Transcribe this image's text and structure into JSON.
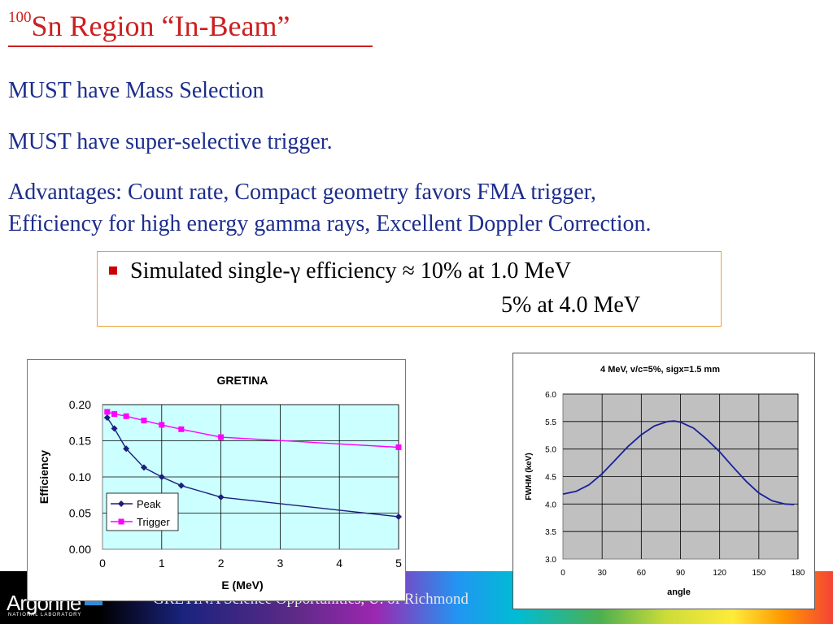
{
  "slide": {
    "title_sup": "100",
    "title_main": "Sn Region “In-Beam”",
    "line1": "MUST have Mass Selection",
    "line2": "MUST have super-selective trigger.",
    "line3a": "Advantages: Count rate, Compact geometry favors FMA trigger,",
    "line3b": "Efficiency for high energy gamma rays, Excellent Doppler Correction.",
    "box_line1": "Simulated single-γ efficiency ≈ 10% at 1.0 MeV",
    "box_line2": "5% at 4.0 MeV",
    "footer": "GRETINA Science Opportunities, U. of Richmond",
    "logo": "Argonne",
    "logo_sub": "NATIONAL LABORATORY"
  },
  "colors": {
    "title": "#cc1f1f",
    "body_text": "#1c2d8c",
    "peak": "#1b1f7a",
    "trigger": "#ff00ff",
    "plot_bg_1": "#ccffff",
    "plot_bg_2": "#c0c0c0",
    "fwhm_line": "#1b1f9a"
  },
  "chart_data": [
    {
      "type": "line",
      "title": "GRETINA",
      "xlabel": "E (MeV)",
      "ylabel": "Efficiency",
      "xlim": [
        0,
        5
      ],
      "ylim": [
        0,
        0.2
      ],
      "xticks": [
        "0",
        "1",
        "2",
        "3",
        "4",
        "5"
      ],
      "yticks": [
        "0.00",
        "0.05",
        "0.10",
        "0.15",
        "0.20"
      ],
      "grid": true,
      "legend": "lower-left",
      "series": [
        {
          "name": "Peak",
          "marker": "diamond",
          "x": [
            0.08,
            0.2,
            0.4,
            0.7,
            1.0,
            1.33,
            2.0,
            5.0
          ],
          "y": [
            0.182,
            0.167,
            0.139,
            0.113,
            0.1,
            0.088,
            0.072,
            0.045
          ]
        },
        {
          "name": "Trigger",
          "marker": "square",
          "x": [
            0.08,
            0.2,
            0.4,
            0.7,
            1.0,
            1.33,
            2.0,
            5.0
          ],
          "y": [
            0.19,
            0.187,
            0.184,
            0.178,
            0.172,
            0.166,
            0.155,
            0.141
          ]
        }
      ]
    },
    {
      "type": "line",
      "title": "4 MeV, v/c=5%, sigx=1.5 mm",
      "xlabel": "angle",
      "ylabel": "FWHM (keV)",
      "xlim": [
        0,
        180
      ],
      "ylim": [
        3.0,
        6.0
      ],
      "xticks": [
        "0",
        "30",
        "60",
        "90",
        "120",
        "150",
        "180"
      ],
      "yticks": [
        "3.0",
        "3.5",
        "4.0",
        "4.5",
        "5.0",
        "5.5",
        "6.0"
      ],
      "grid": true,
      "series": [
        {
          "name": "",
          "x": [
            0,
            10,
            20,
            30,
            40,
            50,
            60,
            70,
            80,
            85,
            90,
            100,
            110,
            120,
            130,
            140,
            150,
            160,
            170,
            177
          ],
          "y": [
            4.18,
            4.23,
            4.35,
            4.55,
            4.8,
            5.05,
            5.26,
            5.42,
            5.5,
            5.51,
            5.49,
            5.38,
            5.18,
            4.95,
            4.68,
            4.42,
            4.2,
            4.06,
            4.0,
            3.99
          ]
        }
      ]
    }
  ]
}
